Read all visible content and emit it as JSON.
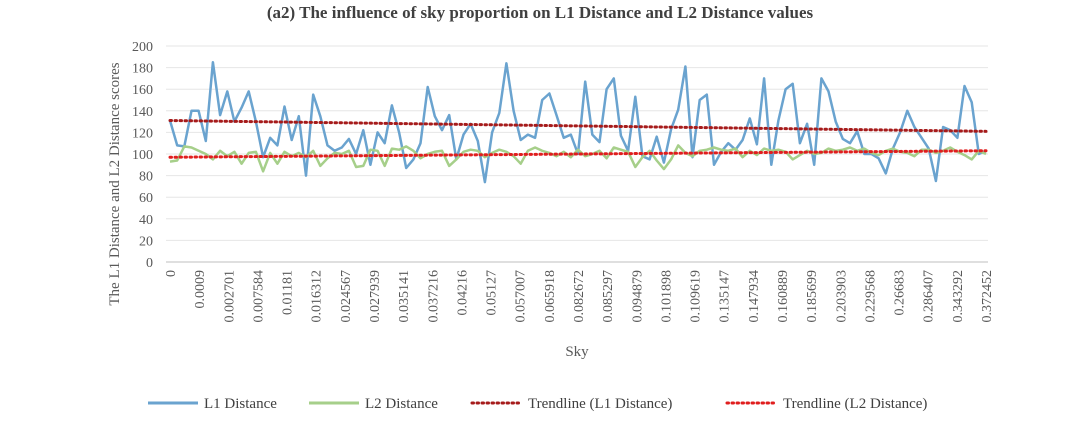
{
  "chart_data": {
    "type": "line",
    "title": "(a2) The influence of sky proportion on L1 Distance and L2 Distance values",
    "xlabel": "Sky",
    "ylabel": "The L1 Distance and L2 Distance scores",
    "ylim": [
      0,
      200
    ],
    "yticks": [
      0,
      20,
      40,
      60,
      80,
      100,
      120,
      140,
      160,
      180,
      200
    ],
    "xtick_labels": [
      "0",
      "0.0009",
      "0.002701",
      "0.007584",
      "0.01181",
      "0.016312",
      "0.024567",
      "0.027939",
      "0.035141",
      "0.037216",
      "0.04216",
      "0.05127",
      "0.057007",
      "0.065918",
      "0.082672",
      "0.085297",
      "0.094879",
      "0.101898",
      "0.109619",
      "0.135147",
      "0.147934",
      "0.160889",
      "0.185699",
      "0.203903",
      "0.229568",
      "0.26683",
      "0.286407",
      "0.343292",
      "0.372452"
    ],
    "point_count": 115,
    "grid": "horizontal",
    "legend_position": "bottom",
    "series": [
      {
        "name": "L1 Distance",
        "color": "#6aa3cf",
        "style": "solid",
        "values": [
          131,
          108,
          107,
          140,
          140,
          112,
          185,
          136,
          158,
          130,
          143,
          158,
          130,
          97,
          115,
          108,
          144,
          113,
          135,
          80,
          155,
          135,
          108,
          103,
          106,
          114,
          100,
          122,
          90,
          120,
          110,
          145,
          120,
          87,
          95,
          110,
          162,
          135,
          122,
          136,
          95,
          118,
          128,
          112,
          74,
          120,
          138,
          184,
          140,
          113,
          118,
          115,
          150,
          156,
          136,
          115,
          118,
          100,
          167,
          118,
          111,
          160,
          170,
          117,
          103,
          153,
          98,
          95,
          116,
          92,
          123,
          141,
          181,
          97,
          150,
          155,
          90,
          102,
          110,
          104,
          113,
          133,
          109,
          170,
          90,
          131,
          160,
          165,
          110,
          128,
          90,
          170,
          158,
          130,
          114,
          110,
          121,
          100,
          100,
          96,
          82,
          105,
          120,
          140,
          125,
          115,
          105,
          75,
          125,
          122,
          115,
          163,
          148,
          100,
          103
        ]
      },
      {
        "name": "L2 Distance",
        "color": "#a6cf8a",
        "style": "solid",
        "values": [
          93,
          94,
          107,
          106,
          103,
          100,
          95,
          103,
          98,
          102,
          91,
          101,
          102,
          84,
          101,
          91,
          102,
          98,
          101,
          97,
          103,
          89,
          96,
          101,
          100,
          103,
          88,
          89,
          104,
          103,
          89,
          105,
          104,
          107,
          103,
          96,
          100,
          102,
          103,
          89,
          95,
          102,
          104,
          103,
          97,
          101,
          104,
          102,
          98,
          91,
          103,
          106,
          103,
          101,
          98,
          102,
          97,
          104,
          98,
          100,
          103,
          96,
          106,
          104,
          102,
          88,
          97,
          103,
          94,
          86,
          95,
          108,
          101,
          98,
          103,
          104,
          106,
          104,
          103,
          105,
          97,
          103,
          99,
          105,
          103,
          104,
          102,
          95,
          99,
          103,
          100,
          101,
          105,
          103,
          104,
          106,
          103,
          105,
          101,
          99,
          103,
          105,
          102,
          101,
          98,
          104,
          104,
          101,
          103,
          106,
          102,
          99,
          95,
          103,
          100
        ]
      },
      {
        "name": "Trendline (L1 Distance)",
        "color": "#a61b1b",
        "style": "dotted",
        "trend": [
          131,
          121
        ]
      },
      {
        "name": "Trendline (L2 Distance)",
        "color": "#e01e1e",
        "style": "dotted",
        "trend": [
          97,
          103
        ]
      }
    ]
  }
}
